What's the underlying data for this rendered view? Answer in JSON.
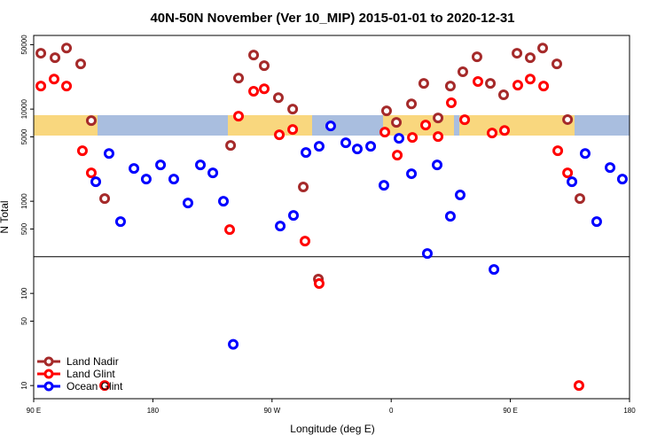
{
  "chart_data": {
    "type": "scatter",
    "title": "40N-50N November (Ver 10_MIP)   2015-01-01 to 2020-12-31",
    "x_label": "Longitude (deg E)",
    "y_label": "N Total",
    "log_y": true,
    "legend": "bottom-left",
    "xlim": [
      90,
      540
    ],
    "ylim": [
      7.2,
      63000
    ],
    "hline": 250,
    "xticks": [
      {
        "value": 90,
        "label": "90 E"
      },
      {
        "value": 180,
        "label": "180"
      },
      {
        "value": 270,
        "label": "90 W"
      },
      {
        "value": 360,
        "label": "0"
      },
      {
        "value": 450,
        "label": "90 E"
      },
      {
        "value": 540,
        "label": "180"
      }
    ],
    "yticks": [
      10,
      50,
      100,
      500,
      1000,
      5000,
      10000,
      50000
    ],
    "series": [
      {
        "name": "Land Nadir",
        "color": "#a52a2a",
        "x": [
          95.4,
          106.1,
          114.8,
          125.5,
          133.5,
          143.6,
          238.7,
          244.7,
          256.1,
          264.1,
          274.8,
          285.6,
          293.6,
          305.0,
          356.5,
          363.9,
          375.3,
          384.6,
          395.4,
          404.7,
          414.1,
          424.8,
          434.9,
          444.9,
          455.0,
          465.0,
          474.4,
          485.1,
          493.2,
          502.5
        ],
        "values": [
          40400,
          36100,
          46000,
          30900,
          7500,
          1070,
          4040,
          21700,
          38600,
          29600,
          13300,
          10000,
          1430,
          143,
          9570,
          7180,
          11400,
          19000,
          8020,
          17800,
          25400,
          36900,
          19000,
          14300,
          40400,
          36100,
          46000,
          30900,
          7700,
          1070
        ]
      },
      {
        "name": "Land Glint",
        "color": "#ff0000",
        "x": [
          95.4,
          105.4,
          114.8,
          126.8,
          133.5,
          143.6,
          238.0,
          244.7,
          256.1,
          264.1,
          275.5,
          285.6,
          294.9,
          305.6,
          355.2,
          364.6,
          376.0,
          386.0,
          395.4,
          405.4,
          415.5,
          425.5,
          436.2,
          445.6,
          455.6,
          465.0,
          475.1,
          485.8,
          493.2,
          501.8
        ],
        "values": [
          17800,
          21200,
          17800,
          3530,
          2030,
          10,
          492,
          8380,
          15600,
          16600,
          5260,
          6010,
          369,
          128,
          5620,
          3160,
          4920,
          6710,
          5040,
          11700,
          7670,
          19900,
          5500,
          5870,
          18200,
          21200,
          17800,
          3530,
          2030,
          10
        ]
      },
      {
        "name": "Ocean Glint",
        "color": "#0000ff",
        "x": [
          136.9,
          146.9,
          155.6,
          165.7,
          175.0,
          185.8,
          195.8,
          206.5,
          215.9,
          225.3,
          233.3,
          240.7,
          276.2,
          286.2,
          295.6,
          305.6,
          314.3,
          325.7,
          334.4,
          344.5,
          354.5,
          365.9,
          375.3,
          387.3,
          394.7,
          404.7,
          412.1,
          437.6,
          496.5,
          506.5,
          515.2,
          525.3,
          534.6
        ],
        "values": [
          1630,
          3300,
          601,
          2270,
          1740,
          2480,
          1740,
          957,
          2480,
          2030,
          1000,
          28,
          538,
          702,
          3380,
          3950,
          6560,
          4310,
          3690,
          3950,
          1490,
          4820,
          1990,
          271,
          2480,
          687,
          1170,
          182,
          1630,
          3300,
          601,
          2320,
          1740
        ]
      }
    ]
  }
}
